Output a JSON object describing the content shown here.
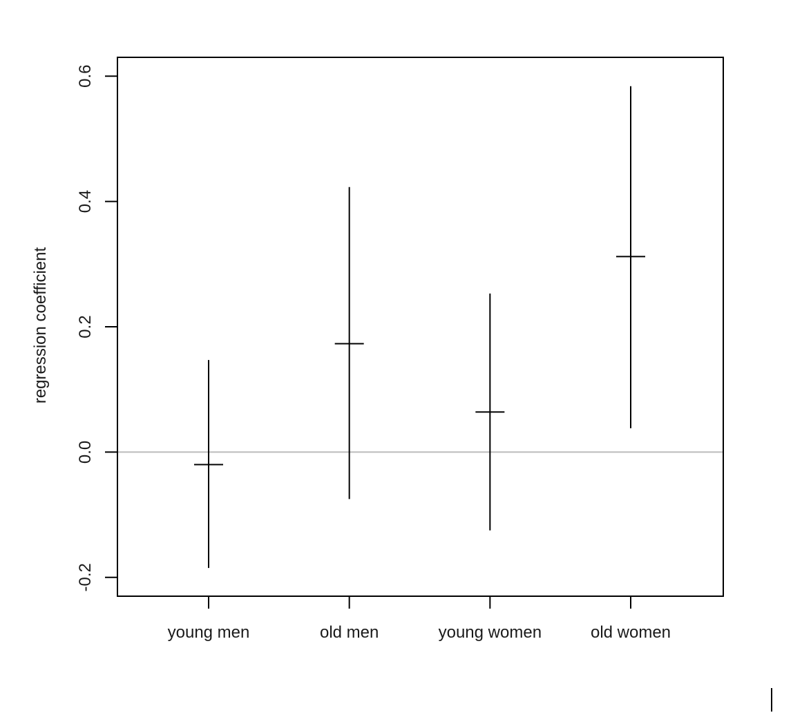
{
  "chart_data": {
    "type": "errorbar",
    "title": "",
    "xlabel": "",
    "ylabel": "regression coefficient",
    "categories": [
      "young men",
      "old men",
      "young women",
      "old women"
    ],
    "estimates": [
      -0.02,
      0.173,
      0.064,
      0.312
    ],
    "lower": [
      -0.185,
      -0.075,
      -0.125,
      0.038
    ],
    "upper": [
      0.147,
      0.423,
      0.253,
      0.584
    ],
    "yticks": [
      "-0.2",
      "0.0",
      "0.2",
      "0.4",
      "0.6"
    ],
    "ylim": [
      -0.23,
      0.63
    ],
    "reference_line": 0,
    "grid": false,
    "colors": {
      "bars": "#000000",
      "reference_line": "#bbbbbb",
      "frame": "#000000"
    }
  }
}
